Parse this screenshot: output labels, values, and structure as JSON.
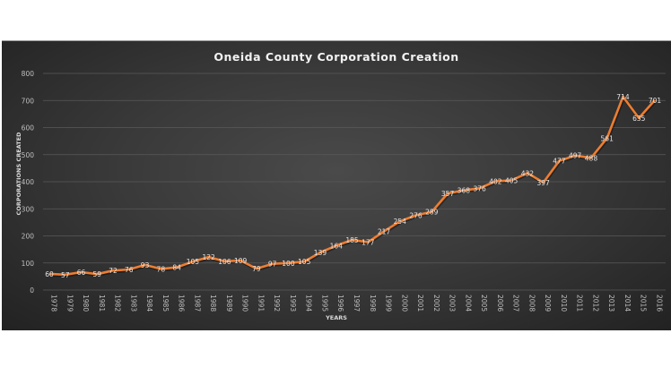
{
  "chart_data": {
    "type": "line",
    "title": "Oneida County Corporation Creation",
    "xlabel": "YEARS",
    "ylabel": "CORPORATIONS CREATED",
    "ylim": [
      0,
      800
    ],
    "yticks": [
      0,
      100,
      200,
      300,
      400,
      500,
      600,
      700,
      800
    ],
    "grid": true,
    "legend": "none",
    "categories": [
      "1978",
      "1979",
      "1980",
      "1981",
      "1982",
      "1983",
      "1984",
      "1985",
      "1986",
      "1987",
      "1988",
      "1989",
      "1990",
      "1991",
      "1992",
      "1993",
      "1994",
      "1995",
      "1996",
      "1997",
      "1998",
      "1999",
      "2000",
      "2001",
      "2002",
      "2003",
      "2004",
      "2005",
      "2006",
      "2007",
      "2008",
      "2009",
      "2010",
      "2011",
      "2012",
      "2013",
      "2014",
      "2015",
      "2016"
    ],
    "series": [
      {
        "name": "Corporations Created",
        "color": "#ed7d31",
        "values": [
          60,
          57,
          66,
          59,
          72,
          76,
          93,
          78,
          84,
          105,
          122,
          106,
          109,
          79,
          97,
          100,
          105,
          139,
          164,
          185,
          177,
          217,
          254,
          276,
          289,
          357,
          368,
          376,
          402,
          405,
          432,
          397,
          477,
          497,
          488,
          561,
          714,
          635,
          701
        ]
      }
    ]
  },
  "colors": {
    "line": "#ed7d31",
    "gridline": "#5a5a5a",
    "text": "#bfbfbf",
    "title": "#f2f2f2"
  }
}
